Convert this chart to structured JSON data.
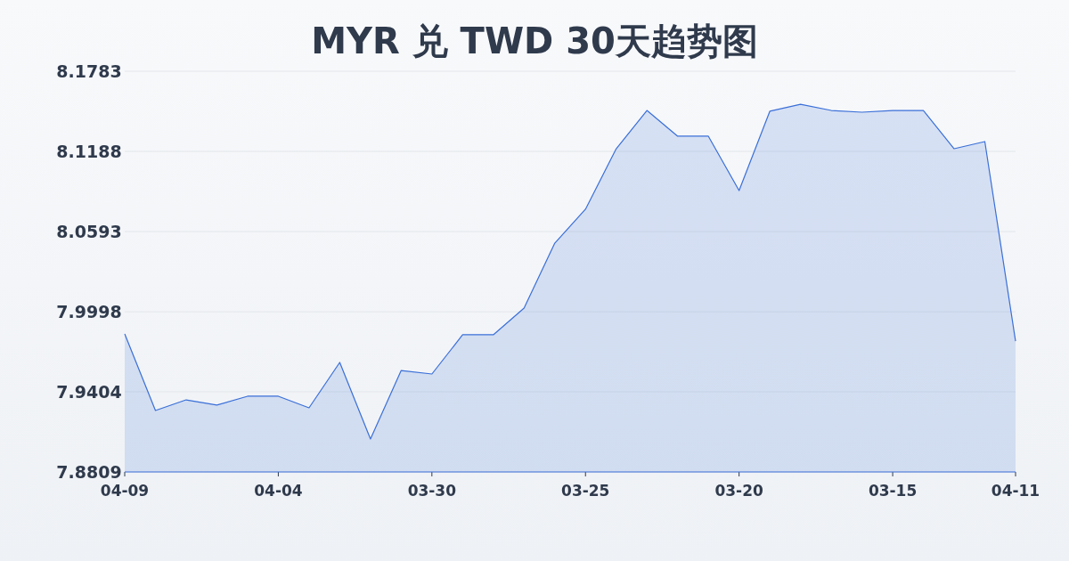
{
  "chart_data": {
    "type": "area",
    "title": "MYR 兑 TWD 30天趋势图",
    "categories": [
      "04-09",
      null,
      null,
      null,
      null,
      "04-04",
      null,
      null,
      null,
      null,
      "03-30",
      null,
      null,
      null,
      null,
      "03-25",
      null,
      null,
      null,
      null,
      "03-20",
      null,
      null,
      null,
      null,
      "03-15",
      null,
      null,
      null,
      "04-11"
    ],
    "values": [
      7.9833,
      7.9265,
      7.9344,
      7.9305,
      7.9371,
      7.9371,
      7.9285,
      7.9622,
      7.9054,
      7.9562,
      7.9536,
      7.9827,
      7.9827,
      8.0025,
      8.0507,
      8.0759,
      8.1208,
      8.1492,
      8.1301,
      8.1301,
      8.0897,
      8.1486,
      8.1538,
      8.1492,
      8.1479,
      8.1492,
      8.1492,
      8.1208,
      8.1261,
      7.978
    ],
    "color": "#3a6fd8",
    "ylim": [
      7.8809,
      8.1783
    ],
    "yticks": [
      7.8809,
      7.9404,
      7.9998,
      8.0593,
      8.1188,
      8.1783
    ],
    "grid": "y"
  }
}
